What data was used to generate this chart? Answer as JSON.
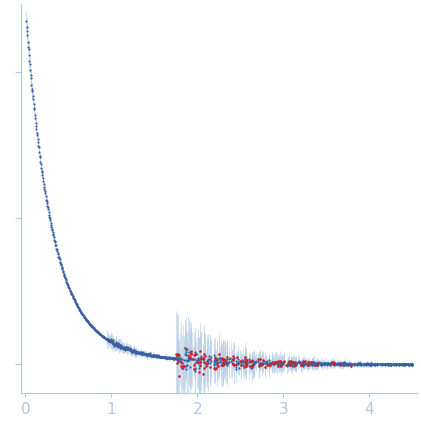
{
  "title": "",
  "xlabel": "",
  "ylabel": "",
  "xlim": [
    -0.05,
    4.55
  ],
  "background_color": "#ffffff",
  "dot_color_blue": "#3a5fa0",
  "dot_color_red": "#cc2222",
  "error_bar_color": "#b8cfe8",
  "ax_color": "#aec6e8",
  "x_ticks": [
    0,
    1,
    2,
    3,
    4
  ],
  "seed": 42,
  "figsize": [
    4.21,
    4.37
  ],
  "dpi": 100
}
